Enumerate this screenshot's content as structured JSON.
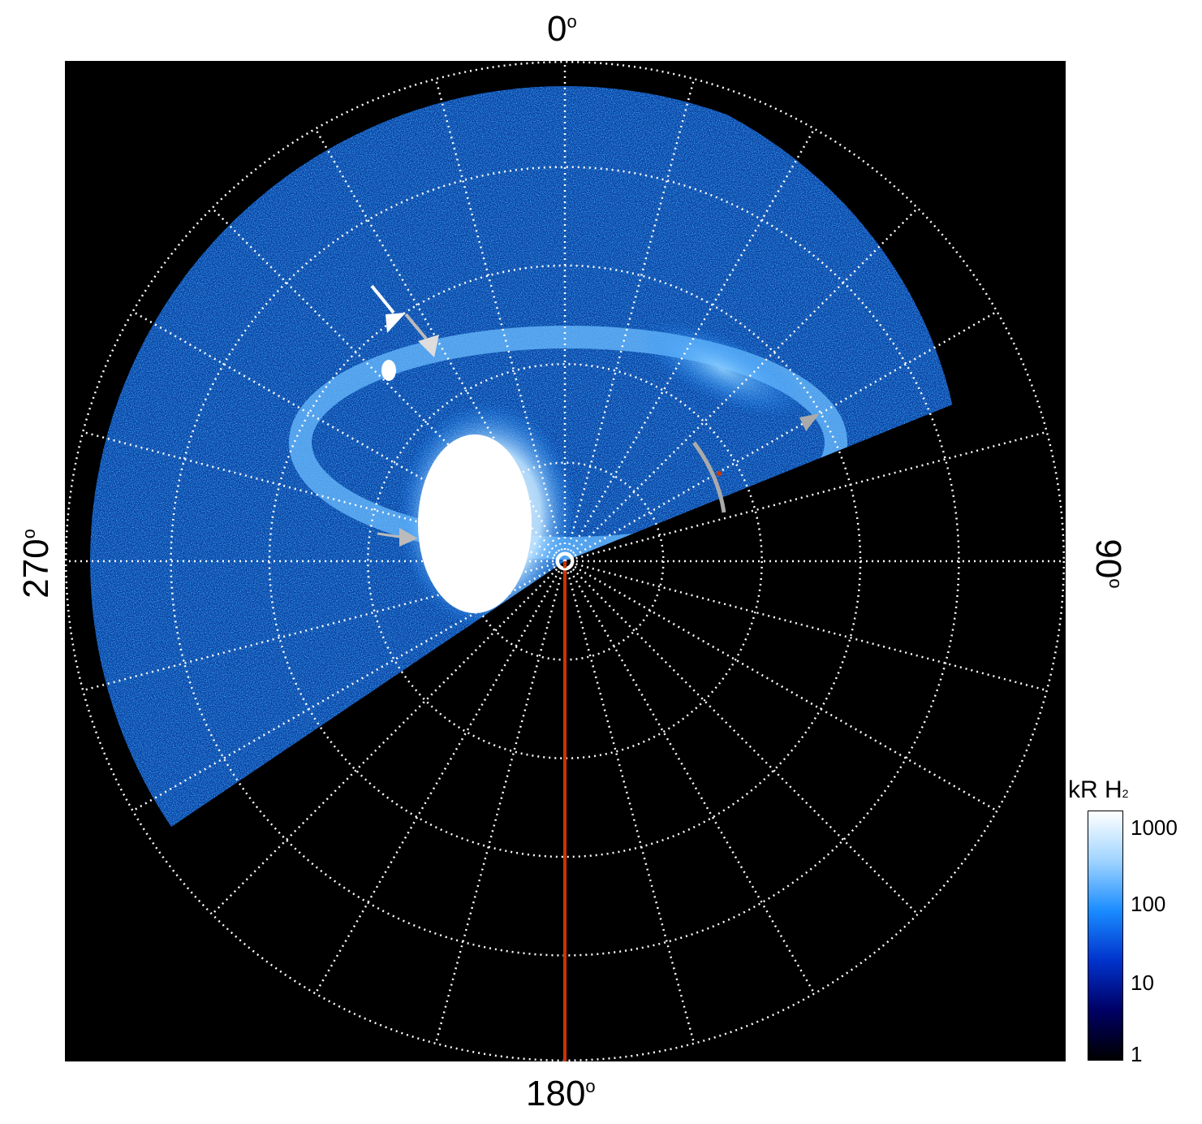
{
  "image": {
    "kind": "polar-projection-auroral-image",
    "background_color": "#000000",
    "grid_color": "#ffffff",
    "marker_line_color": "#cc3300",
    "arrow_colors": [
      "#ffffff",
      "#bbbbbb"
    ]
  },
  "axes": {
    "top": "0",
    "right": "90",
    "bottom": "180",
    "left": "270",
    "degree_symbol": "o"
  },
  "colorbar": {
    "title_main": "kR H",
    "title_sub": "2",
    "ticks": [
      "1000",
      "100",
      "10",
      "1"
    ],
    "scale": "log",
    "range": [
      1,
      1500
    ],
    "colors": [
      "#ffffff",
      "#9fd4ff",
      "#1a8cff",
      "#0033cc",
      "#000066",
      "#000000"
    ]
  }
}
